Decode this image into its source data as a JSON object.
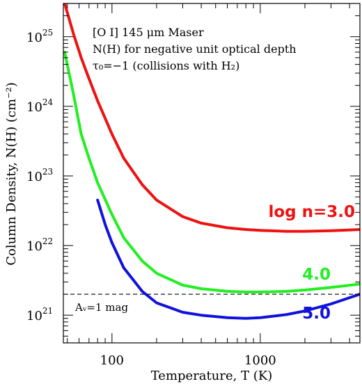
{
  "chart_data": {
    "type": "line",
    "xlabel": "Temperature, T (K)",
    "ylabel": "Column Density, N(H) (cm⁻²)",
    "xscale": "log",
    "yscale": "log",
    "xlim": [
      47,
      4700
    ],
    "ylim": [
      4e+20,
      3e+25
    ],
    "annotations": [
      "[O I] 145 μm Maser",
      "N(H) for negative unit optical depth",
      "τ₀=−1 (collisions with H₂)"
    ],
    "x_ticks": [
      {
        "value": 100,
        "label": "100"
      },
      {
        "value": 1000,
        "label": "1000"
      }
    ],
    "y_ticks": [
      {
        "value": 1e+21,
        "base": "10",
        "exp": "21"
      },
      {
        "value": 1e+22,
        "base": "10",
        "exp": "22"
      },
      {
        "value": 1e+23,
        "base": "10",
        "exp": "23"
      },
      {
        "value": 1e+24,
        "base": "10",
        "exp": "24"
      },
      {
        "value": 1e+25,
        "base": "10",
        "exp": "25"
      }
    ],
    "series": [
      {
        "name": "log n=3.0",
        "color": "#ee1111",
        "x": [
          48,
          55,
          62,
          70,
          80,
          100,
          120,
          160,
          200,
          300,
          400,
          600,
          800,
          1000,
          1500,
          2000,
          3000,
          4700
        ],
        "y": [
          3e+25,
          1.1e+25,
          5e+24,
          2.5e+24,
          1.2e+24,
          4e+23,
          1.8e+23,
          7.5e+22,
          4.5e+22,
          2.6e+22,
          2.1e+22,
          1.8e+22,
          1.7e+22,
          1.65e+22,
          1.6e+22,
          1.6e+22,
          1.63e+22,
          1.7e+22
        ]
      },
      {
        "name": "4.0",
        "color": "#22ee22",
        "x": [
          48,
          55,
          62,
          70,
          80,
          100,
          120,
          160,
          200,
          300,
          400,
          600,
          800,
          1000,
          1500,
          2000,
          3000,
          4700
        ],
        "y": [
          6e+24,
          1.5e+24,
          4e+23,
          1.8e+23,
          8e+22,
          2.8e+22,
          1.3e+22,
          6e+21,
          4e+21,
          2.7e+21,
          2.4e+21,
          2.2e+21,
          2.15e+21,
          2.15e+21,
          2.2e+21,
          2.3e+21,
          2.5e+21,
          2.8e+21
        ]
      },
      {
        "name": "5.0",
        "color": "#1111dd",
        "x": [
          80,
          90,
          100,
          120,
          160,
          200,
          300,
          400,
          600,
          800,
          1000,
          1500,
          2000,
          3000,
          4700
        ],
        "y": [
          4.5e+22,
          2e+22,
          1.1e+22,
          4.8e+21,
          2.2e+21,
          1.5e+21,
          1.1e+21,
          1e+21,
          9.2e+20,
          9e+20,
          9.2e+20,
          1.02e+21,
          1.15e+21,
          1.45e+21,
          2e+21
        ]
      }
    ],
    "reference_line": {
      "y": 2e+21,
      "label": "Aᵥ=1 mag",
      "style": "dashed"
    },
    "legend": "inline labels at right end of curves"
  }
}
